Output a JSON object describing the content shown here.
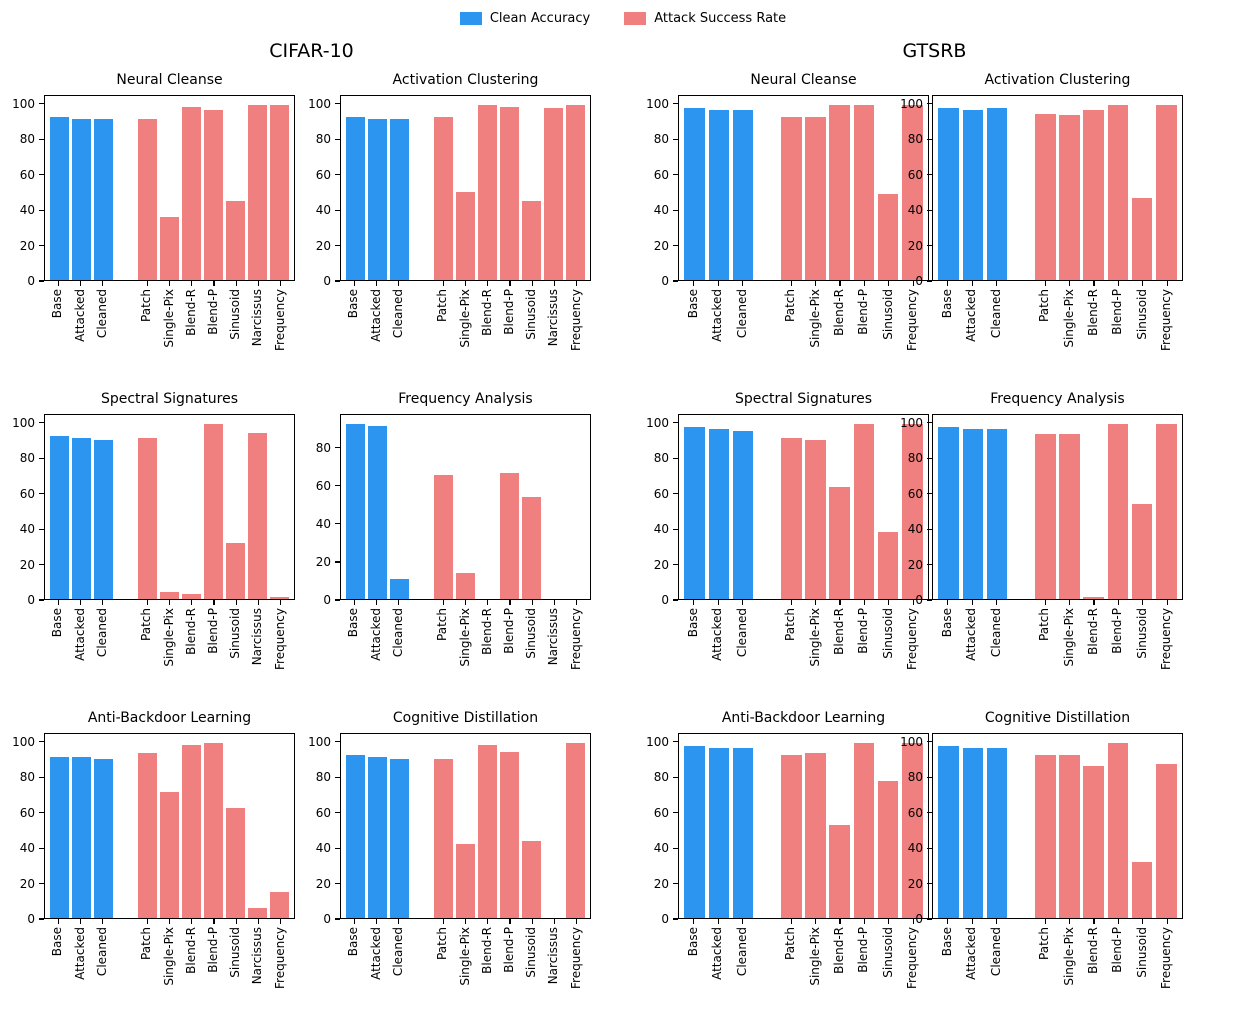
{
  "legend": [
    {
      "label": "Clean Accuracy",
      "color": "#2b95f0"
    },
    {
      "label": "Attack Success Rate",
      "color": "#f08080"
    }
  ],
  "datasets": [
    {
      "title": "CIFAR-10"
    },
    {
      "title": "GTSRB"
    }
  ],
  "colors": {
    "clean": "#2b95f0",
    "attack": "#f08080",
    "axis": "#000000"
  },
  "chart_data": [
    {
      "type": "bar",
      "dataset": "CIFAR-10",
      "title": "Neural Cleanse",
      "categories_clean": [
        "Base",
        "Attacked",
        "Cleaned"
      ],
      "categories_attack": [
        "Patch",
        "Single-Pix",
        "Blend-R",
        "Blend-P",
        "Sinusoid",
        "Narcissus",
        "Frequency"
      ],
      "clean_values": [
        93,
        92,
        92
      ],
      "attack_values": [
        92,
        36,
        99,
        97,
        45,
        100,
        100
      ],
      "yticks": [
        0,
        20,
        40,
        60,
        80,
        100
      ],
      "ylim": [
        0,
        105
      ]
    },
    {
      "type": "bar",
      "dataset": "CIFAR-10",
      "title": "Activation Clustering",
      "categories_clean": [
        "Base",
        "Attacked",
        "Cleaned"
      ],
      "categories_attack": [
        "Patch",
        "Single-Pix",
        "Blend-R",
        "Blend-P",
        "Sinusoid",
        "Narcissus",
        "Frequency"
      ],
      "clean_values": [
        93,
        92,
        92
      ],
      "attack_values": [
        93,
        50,
        100,
        99,
        45,
        98,
        100
      ],
      "yticks": [
        0,
        20,
        40,
        60,
        80,
        100
      ],
      "ylim": [
        0,
        105
      ]
    },
    {
      "type": "bar",
      "dataset": "GTSRB",
      "title": "Neural Cleanse",
      "categories_clean": [
        "Base",
        "Attacked",
        "Cleaned"
      ],
      "categories_attack": [
        "Patch",
        "Single-Pix",
        "Blend-R",
        "Blend-P",
        "Sinusoid",
        "Frequency"
      ],
      "clean_values": [
        98,
        97,
        97
      ],
      "attack_values": [
        93,
        93,
        100,
        100,
        49,
        100
      ],
      "yticks": [
        0,
        20,
        40,
        60,
        80,
        100
      ],
      "ylim": [
        0,
        105
      ]
    },
    {
      "type": "bar",
      "dataset": "GTSRB",
      "title": "Activation Clustering",
      "categories_clean": [
        "Base",
        "Attacked",
        "Cleaned"
      ],
      "categories_attack": [
        "Patch",
        "Single-Pix",
        "Blend-R",
        "Blend-P",
        "Sinusoid",
        "Frequency"
      ],
      "clean_values": [
        98,
        97,
        98
      ],
      "attack_values": [
        95,
        94,
        97,
        100,
        47,
        100
      ],
      "yticks": [
        0,
        20,
        40,
        60,
        80,
        100
      ],
      "ylim": [
        0,
        105
      ]
    },
    {
      "type": "bar",
      "dataset": "CIFAR-10",
      "title": "Spectral Signatures",
      "categories_clean": [
        "Base",
        "Attacked",
        "Cleaned"
      ],
      "categories_attack": [
        "Patch",
        "Single-Pix",
        "Blend-R",
        "Blend-P",
        "Sinusoid",
        "Narcissus",
        "Frequency"
      ],
      "clean_values": [
        93,
        92,
        91
      ],
      "attack_values": [
        92,
        4,
        3,
        100,
        32,
        95,
        1
      ],
      "yticks": [
        0,
        20,
        40,
        60,
        80,
        100
      ],
      "ylim": [
        0,
        105
      ]
    },
    {
      "type": "bar",
      "dataset": "CIFAR-10",
      "title": "Frequency Analysis",
      "categories_clean": [
        "Base",
        "Attacked",
        "Cleaned"
      ],
      "categories_attack": [
        "Patch",
        "Single-Pix",
        "Blend-R",
        "Blend-P",
        "Sinusoid",
        "Narcissus",
        "Frequency"
      ],
      "clean_values": [
        93,
        92,
        10.5
      ],
      "attack_values": [
        66,
        14,
        0,
        67,
        54,
        0,
        0
      ],
      "yticks": [
        0,
        20,
        40,
        60,
        80
      ],
      "ylim": [
        0,
        97.6
      ]
    },
    {
      "type": "bar",
      "dataset": "GTSRB",
      "title": "Spectral Signatures",
      "categories_clean": [
        "Base",
        "Attacked",
        "Cleaned"
      ],
      "categories_attack": [
        "Patch",
        "Single-Pix",
        "Blend-R",
        "Blend-P",
        "Sinusoid",
        "Frequency"
      ],
      "clean_values": [
        98,
        97,
        96
      ],
      "attack_values": [
        92,
        91,
        64,
        100,
        38,
        100
      ],
      "yticks": [
        0,
        20,
        40,
        60,
        80,
        100
      ],
      "ylim": [
        0,
        105
      ]
    },
    {
      "type": "bar",
      "dataset": "GTSRB",
      "title": "Frequency Analysis",
      "categories_clean": [
        "Base",
        "Attacked",
        "Cleaned"
      ],
      "categories_attack": [
        "Patch",
        "Single-Pix",
        "Blend-R",
        "Blend-P",
        "Sinusoid",
        "Frequency"
      ],
      "clean_values": [
        98,
        97,
        97
      ],
      "attack_values": [
        94,
        94,
        1,
        100,
        54,
        100
      ],
      "yticks": [
        0,
        20,
        40,
        60,
        80,
        100
      ],
      "ylim": [
        0,
        105
      ]
    },
    {
      "type": "bar",
      "dataset": "CIFAR-10",
      "title": "Anti-Backdoor Learning",
      "categories_clean": [
        "Base",
        "Attacked",
        "Cleaned"
      ],
      "categories_attack": [
        "Patch",
        "Single-Pix",
        "Blend-R",
        "Blend-P",
        "Sinusoid",
        "Narcissus",
        "Frequency"
      ],
      "clean_values": [
        92,
        92,
        91
      ],
      "attack_values": [
        94,
        72,
        99,
        100,
        63,
        6,
        15
      ],
      "yticks": [
        0,
        20,
        40,
        60,
        80,
        100
      ],
      "ylim": [
        0,
        105
      ]
    },
    {
      "type": "bar",
      "dataset": "CIFAR-10",
      "title": "Cognitive Distillation",
      "categories_clean": [
        "Base",
        "Attacked",
        "Cleaned"
      ],
      "categories_attack": [
        "Patch",
        "Single-Pix",
        "Blend-R",
        "Blend-P",
        "Sinusoid",
        "Narcissus",
        "Frequency"
      ],
      "clean_values": [
        93,
        92,
        91
      ],
      "attack_values": [
        91,
        42,
        99,
        95,
        44,
        0,
        100
      ],
      "yticks": [
        0,
        20,
        40,
        60,
        80,
        100
      ],
      "ylim": [
        0,
        105
      ]
    },
    {
      "type": "bar",
      "dataset": "GTSRB",
      "title": "Anti-Backdoor Learning",
      "categories_clean": [
        "Base",
        "Attacked",
        "Cleaned"
      ],
      "categories_attack": [
        "Patch",
        "Single-Pix",
        "Blend-R",
        "Blend-P",
        "Sinusoid",
        "Frequency"
      ],
      "clean_values": [
        98,
        97,
        97
      ],
      "attack_values": [
        93,
        94,
        53,
        100,
        78,
        100
      ],
      "yticks": [
        0,
        20,
        40,
        60,
        80,
        100
      ],
      "ylim": [
        0,
        105
      ]
    },
    {
      "type": "bar",
      "dataset": "GTSRB",
      "title": "Cognitive Distillation",
      "categories_clean": [
        "Base",
        "Attacked",
        "Cleaned"
      ],
      "categories_attack": [
        "Patch",
        "Single-Pix",
        "Blend-R",
        "Blend-P",
        "Sinusoid",
        "Frequency"
      ],
      "clean_values": [
        98,
        97,
        97
      ],
      "attack_values": [
        93,
        93,
        87,
        100,
        32,
        88
      ],
      "yticks": [
        0,
        20,
        40,
        60,
        80,
        100
      ],
      "ylim": [
        0,
        105
      ]
    }
  ]
}
